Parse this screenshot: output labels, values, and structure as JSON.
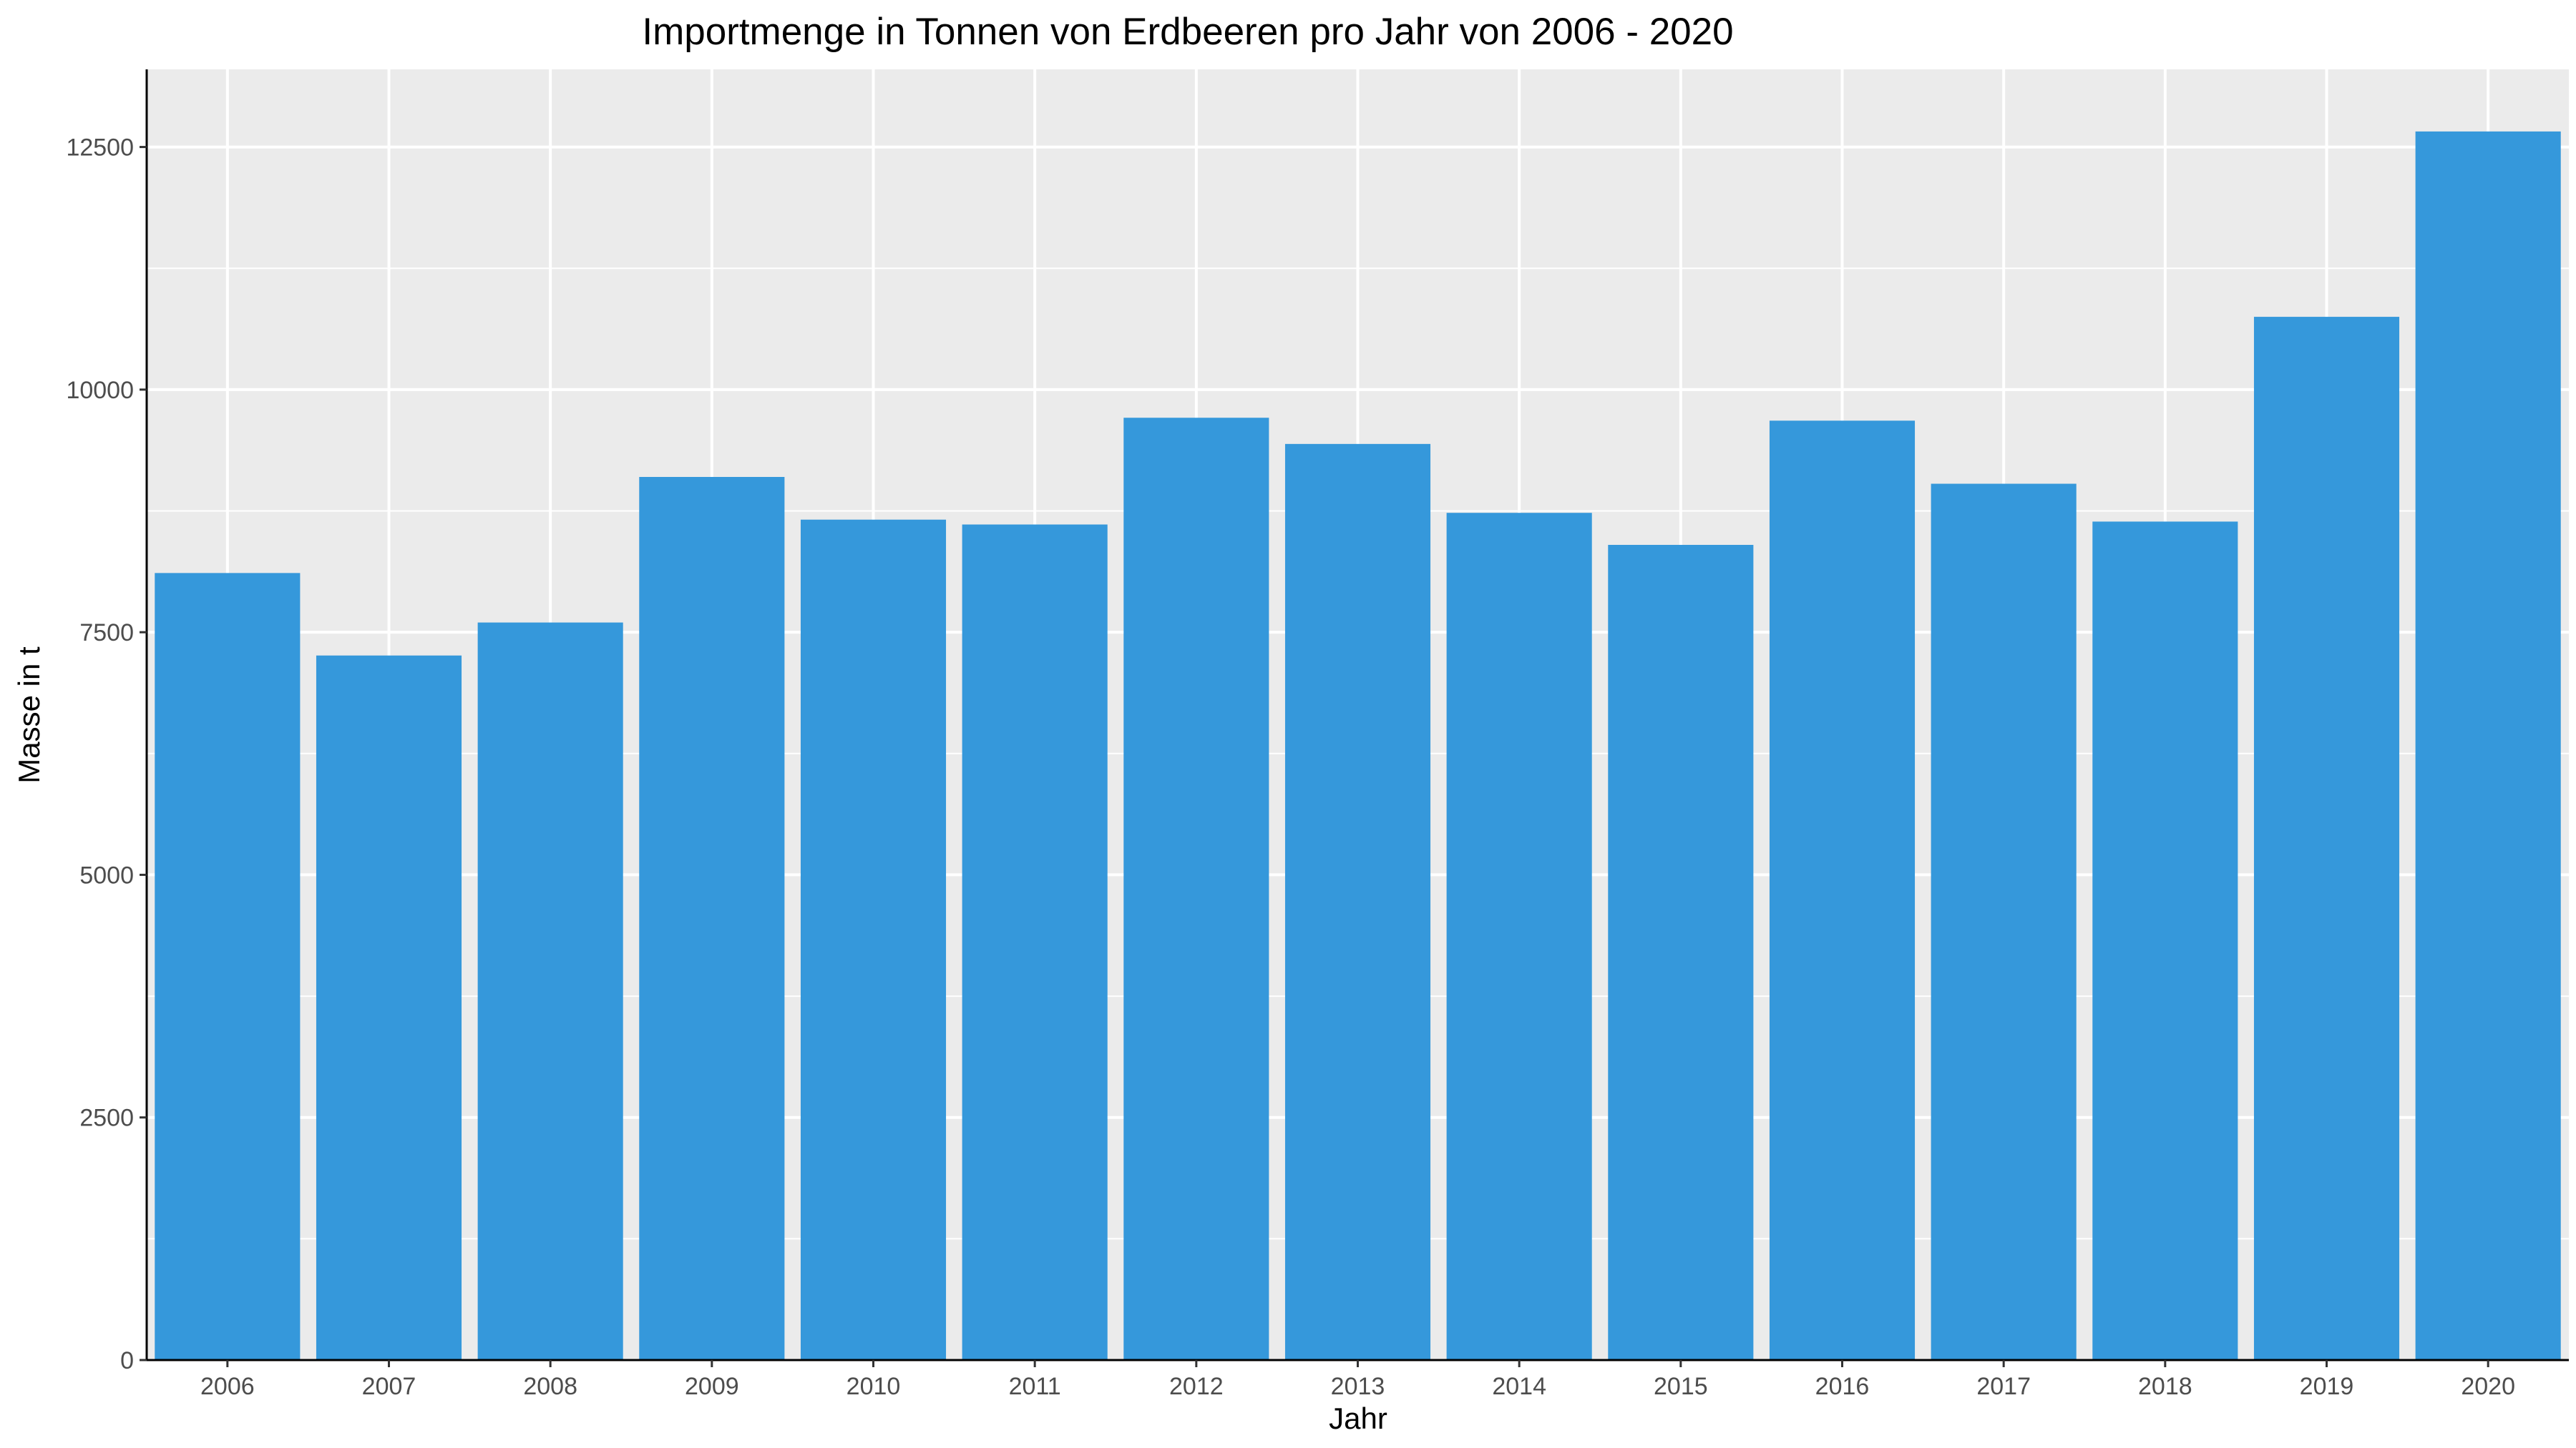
{
  "chart_data": {
    "type": "bar",
    "title": "Importmenge in Tonnen von Erdbeeren pro Jahr von 2006 - 2020",
    "xlabel": "Jahr",
    "ylabel": "Masse in t",
    "categories": [
      "2006",
      "2007",
      "2008",
      "2009",
      "2010",
      "2011",
      "2012",
      "2013",
      "2014",
      "2015",
      "2016",
      "2017",
      "2018",
      "2019",
      "2020"
    ],
    "values": [
      8110,
      7260,
      7600,
      9100,
      8660,
      8610,
      9710,
      9440,
      8730,
      8400,
      9680,
      9030,
      8640,
      10750,
      12660
    ],
    "yticks": [
      "0",
      "2500",
      "5000",
      "7500",
      "10000",
      "12500"
    ],
    "ylim": [
      0,
      13300
    ],
    "grid": true,
    "legend": "none",
    "colors": {
      "bar": "#3598DB",
      "panel_background": "#EBEBEB",
      "grid": "#FFFFFF",
      "axis_line": "#000000"
    }
  }
}
